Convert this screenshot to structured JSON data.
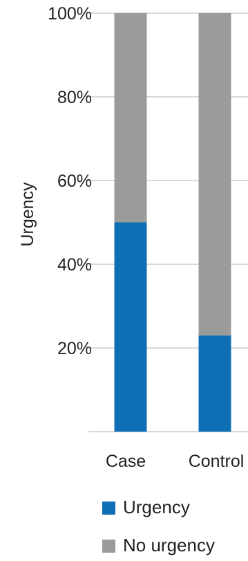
{
  "chart_data": {
    "type": "bar",
    "stacked": true,
    "categories": [
      "Case",
      "Control"
    ],
    "series": [
      {
        "name": "Urgency",
        "values": [
          50,
          23
        ],
        "color": "#0e6fb5"
      },
      {
        "name": "No urgency",
        "values": [
          50,
          77
        ],
        "color": "#9b9b9b"
      }
    ],
    "ylabel": "Urgency",
    "xlabel": "",
    "ylim": [
      0,
      100
    ],
    "y_ticks": [
      20,
      40,
      60,
      80,
      100
    ],
    "y_tick_labels": [
      "20%",
      "40%",
      "60%",
      "80%",
      "100%"
    ],
    "grid": true,
    "grid_color": "#d9d9d9",
    "legend_position": "bottom-left"
  }
}
